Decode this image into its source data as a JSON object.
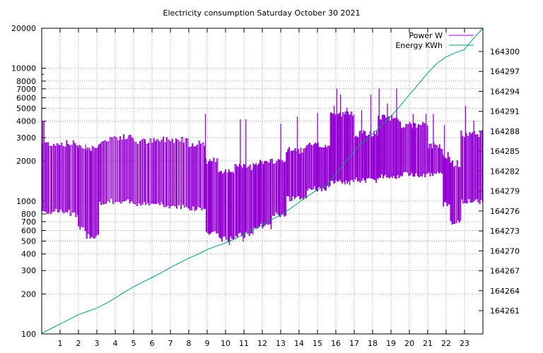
{
  "chart_data": {
    "type": "line",
    "title": "Electricity consumption Saturday October 30 2021",
    "x_axis": {
      "range": [
        0,
        24
      ],
      "tick_labels": [
        "1",
        "2",
        "3",
        "4",
        "5",
        "6",
        "7",
        "8",
        "9",
        "10",
        "11",
        "12",
        "13",
        "14",
        "15",
        "16",
        "17",
        "18",
        "19",
        "20",
        "21",
        "22",
        "23"
      ],
      "ticks": [
        1,
        2,
        3,
        4,
        5,
        6,
        7,
        8,
        9,
        10,
        11,
        12,
        13,
        14,
        15,
        16,
        17,
        18,
        19,
        20,
        21,
        22,
        23
      ]
    },
    "y_axis_left": {
      "scale": "log",
      "range": [
        100,
        20000
      ],
      "ticks": [
        100,
        200,
        300,
        400,
        500,
        600,
        700,
        800,
        1000,
        2000,
        3000,
        4000,
        5000,
        6000,
        7000,
        8000,
        10000,
        20000
      ],
      "tick_labels": [
        "100",
        "200",
        "300",
        "400",
        "500",
        "600",
        "700",
        "800",
        "1000",
        "2000",
        "3000",
        "4000",
        "5000",
        "6000",
        "7000",
        "8000",
        "10000",
        "20000"
      ]
    },
    "y_axis_right": {
      "scale": "linear",
      "range": [
        164257.5,
        164303.5
      ],
      "ticks": [
        164261,
        164264,
        164267,
        164270,
        164273,
        164276,
        164279,
        164282,
        164285,
        164288,
        164291,
        164294,
        164297,
        164300
      ],
      "tick_labels": [
        "164261",
        "164264",
        "164267",
        "164270",
        "164273",
        "164276",
        "164279",
        "164282",
        "164285",
        "164288",
        "164291",
        "164294",
        "164297",
        "164300"
      ]
    },
    "grid": true,
    "legend_position": "top-right",
    "series": [
      {
        "name": "Power W",
        "color": "#9400d3",
        "axis": "left",
        "segments": [
          {
            "x0": 0.0,
            "x1": 1.5,
            "low": 840,
            "high": 2700,
            "period": 0.09
          },
          {
            "x0": 1.5,
            "x1": 1.95,
            "low": 800,
            "high": 2700,
            "period": 0.09
          },
          {
            "x0": 1.95,
            "x1": 2.4,
            "low": 620,
            "high": 2600,
            "period": 0.09
          },
          {
            "x0": 2.4,
            "x1": 3.1,
            "low": 550,
            "high": 2500,
            "period": 0.09
          },
          {
            "x0": 3.1,
            "x1": 3.7,
            "low": 960,
            "high": 2800,
            "period": 0.09
          },
          {
            "x0": 3.7,
            "x1": 5.0,
            "low": 1000,
            "high": 3000,
            "period": 0.1
          },
          {
            "x0": 5.0,
            "x1": 6.5,
            "low": 950,
            "high": 2800,
            "period": 0.1
          },
          {
            "x0": 6.5,
            "x1": 8.0,
            "low": 920,
            "high": 2900,
            "period": 0.1
          },
          {
            "x0": 8.0,
            "x1": 8.9,
            "low": 880,
            "high": 2700,
            "period": 0.1
          },
          {
            "x0": 8.9,
            "x1": 9.6,
            "low": 580,
            "high": 2000,
            "period": 0.08
          },
          {
            "x0": 9.6,
            "x1": 10.5,
            "low": 520,
            "high": 1700,
            "period": 0.08
          },
          {
            "x0": 10.5,
            "x1": 11.5,
            "low": 560,
            "high": 1800,
            "period": 0.08
          },
          {
            "x0": 11.5,
            "x1": 12.5,
            "low": 650,
            "high": 1950,
            "period": 0.08
          },
          {
            "x0": 12.5,
            "x1": 13.3,
            "low": 800,
            "high": 2000,
            "period": 0.08
          },
          {
            "x0": 13.3,
            "x1": 14.4,
            "low": 1050,
            "high": 2400,
            "period": 0.08
          },
          {
            "x0": 14.4,
            "x1": 15.7,
            "low": 1250,
            "high": 2600,
            "period": 0.08
          },
          {
            "x0": 15.7,
            "x1": 17.0,
            "low": 1400,
            "high": 4500,
            "period": 0.07
          },
          {
            "x0": 17.0,
            "x1": 18.3,
            "low": 1450,
            "high": 3200,
            "period": 0.07
          },
          {
            "x0": 18.3,
            "x1": 19.5,
            "low": 1550,
            "high": 4200,
            "period": 0.07
          },
          {
            "x0": 19.5,
            "x1": 21.0,
            "low": 1600,
            "high": 3700,
            "period": 0.08
          },
          {
            "x0": 21.0,
            "x1": 21.8,
            "low": 1600,
            "high": 2600,
            "period": 0.08
          },
          {
            "x0": 21.8,
            "x1": 22.2,
            "low": 950,
            "high": 2200,
            "period": 0.08
          },
          {
            "x0": 22.2,
            "x1": 22.8,
            "low": 700,
            "high": 1900,
            "period": 0.08
          },
          {
            "x0": 22.8,
            "x1": 24.0,
            "low": 1000,
            "high": 3200,
            "period": 0.09
          }
        ],
        "peaks": [
          {
            "x": 0.05,
            "value": 4000
          },
          {
            "x": 0.12,
            "value": 4000
          },
          {
            "x": 8.9,
            "value": 4500
          },
          {
            "x": 10.8,
            "value": 4100
          },
          {
            "x": 11.1,
            "value": 4100
          },
          {
            "x": 13.0,
            "value": 3800
          },
          {
            "x": 13.9,
            "value": 4300
          },
          {
            "x": 15.0,
            "value": 4600
          },
          {
            "x": 15.9,
            "value": 5200
          },
          {
            "x": 16.05,
            "value": 7000
          },
          {
            "x": 16.25,
            "value": 6300
          },
          {
            "x": 16.6,
            "value": 5000
          },
          {
            "x": 17.4,
            "value": 4800
          },
          {
            "x": 17.9,
            "value": 6300
          },
          {
            "x": 18.35,
            "value": 7000
          },
          {
            "x": 18.8,
            "value": 5400
          },
          {
            "x": 19.3,
            "value": 7000
          },
          {
            "x": 20.2,
            "value": 4500
          },
          {
            "x": 20.9,
            "value": 4500
          },
          {
            "x": 21.3,
            "value": 4500
          },
          {
            "x": 21.9,
            "value": 3700
          },
          {
            "x": 23.05,
            "value": 5200
          },
          {
            "x": 23.5,
            "value": 4000
          }
        ],
        "dips": [
          {
            "x": 9.1,
            "value": 560
          },
          {
            "x": 10.2,
            "value": 470
          },
          {
            "x": 10.95,
            "value": 500
          },
          {
            "x": 22.7,
            "value": 690
          }
        ]
      },
      {
        "name": "Energy KWh",
        "color": "#009e73",
        "axis": "right",
        "x": [
          0.0,
          0.5,
          1.0,
          1.5,
          2.0,
          2.5,
          3.0,
          3.5,
          4.0,
          4.5,
          5.0,
          5.5,
          6.0,
          6.5,
          7.0,
          7.5,
          8.0,
          8.5,
          9.0,
          9.5,
          10.0,
          10.5,
          11.0,
          11.5,
          12.0,
          12.5,
          13.0,
          13.5,
          14.0,
          14.5,
          15.0,
          15.5,
          16.0,
          16.5,
          17.0,
          17.5,
          18.0,
          18.5,
          19.0,
          19.5,
          20.0,
          20.5,
          21.0,
          21.5,
          22.0,
          22.5,
          23.0,
          23.5,
          24.0
        ],
        "values": [
          164257.6,
          164258.3,
          164259.0,
          164259.7,
          164260.4,
          164260.9,
          164261.4,
          164262.1,
          164262.9,
          164263.8,
          164264.6,
          164265.3,
          164266.0,
          164266.7,
          164267.5,
          164268.2,
          164268.9,
          164269.5,
          164270.2,
          164270.7,
          164271.2,
          164271.8,
          164272.5,
          164273.2,
          164273.9,
          164274.7,
          164275.4,
          164276.3,
          164277.3,
          164278.3,
          164279.2,
          164279.9,
          164281.5,
          164283.3,
          164285.0,
          164286.4,
          164287.6,
          164288.9,
          164290.3,
          164291.8,
          164293.5,
          164295.1,
          164296.8,
          164298.2,
          164299.2,
          164299.8,
          164300.3,
          164302.0,
          164303.5
        ]
      }
    ]
  }
}
